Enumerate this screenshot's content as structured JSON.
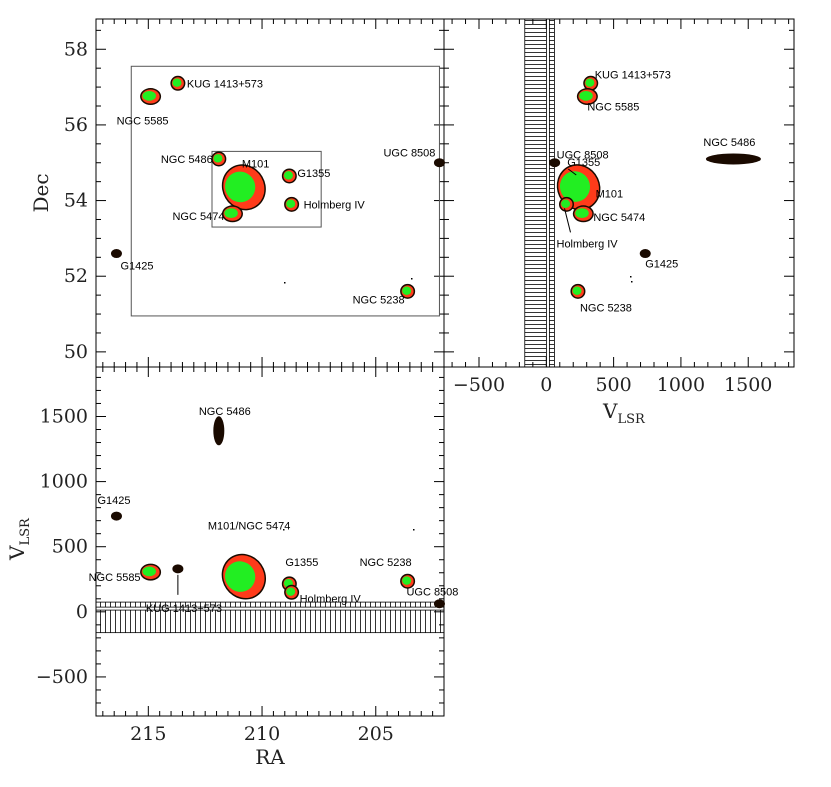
{
  "chart_data": [
    {
      "type": "scatter",
      "panel": "top-left",
      "title": "",
      "xlabel": "",
      "ylabel": "Dec",
      "xlim": [
        217.3,
        202.0
      ],
      "ylim": [
        49.6,
        58.8
      ],
      "xticks": [],
      "yticks": [
        50,
        52,
        54,
        56,
        58
      ],
      "boxes": [
        {
          "name": "outer field",
          "ra": [
            215.75,
            202.2
          ],
          "dec": [
            50.95,
            57.55
          ]
        },
        {
          "name": "inner field",
          "ra": [
            212.2,
            207.4
          ],
          "dec": [
            53.3,
            55.3
          ]
        }
      ],
      "sources": [
        {
          "name": "KUG 1413+573",
          "ra": 213.7,
          "dec": 57.1,
          "size": "small"
        },
        {
          "name": "NGC 5585",
          "ra": 214.9,
          "dec": 56.75,
          "size": "medium"
        },
        {
          "name": "NGC 5486",
          "ra": 211.9,
          "dec": 55.1,
          "size": "small"
        },
        {
          "name": "M101",
          "ra": 210.8,
          "dec": 54.35,
          "size": "large"
        },
        {
          "name": "G1355",
          "ra": 208.8,
          "dec": 54.65,
          "size": "small"
        },
        {
          "name": "Holmberg IV",
          "ra": 208.7,
          "dec": 53.9,
          "size": "small"
        },
        {
          "name": "NGC 5474",
          "ra": 211.3,
          "dec": 53.65,
          "size": "medium"
        },
        {
          "name": "UGC 8508",
          "ra": 202.2,
          "dec": 55.0,
          "size": "tiny"
        },
        {
          "name": "G1425",
          "ra": 216.4,
          "dec": 52.6,
          "size": "tiny"
        },
        {
          "name": "NGC 5238",
          "ra": 203.6,
          "dec": 51.6,
          "size": "small"
        }
      ]
    },
    {
      "type": "scatter",
      "panel": "top-right",
      "title": "",
      "xlabel": "V",
      "xlabel_sub": "LSR",
      "ylabel": "",
      "xlim": [
        -760,
        1840
      ],
      "ylim": [
        49.6,
        58.8
      ],
      "xticks": [
        -500,
        0,
        500,
        1000,
        1500
      ],
      "yticks": [],
      "masked_range": [
        -160,
        90
      ],
      "sources": [
        {
          "name": "KUG 1413+573",
          "v": 330,
          "dec": 57.1,
          "size": "small"
        },
        {
          "name": "NGC 5585",
          "v": 305,
          "dec": 56.75,
          "size": "medium"
        },
        {
          "name": "UGC 8508",
          "v": 62,
          "dec": 55.0,
          "size": "tiny"
        },
        {
          "name": "G1355",
          "v": 215,
          "dec": 54.65,
          "size": "small"
        },
        {
          "name": "NGC 5486",
          "v": 1390,
          "dec": 55.1,
          "size": "elongated"
        },
        {
          "name": "M101",
          "v": 240,
          "dec": 54.35,
          "size": "large"
        },
        {
          "name": "NGC 5474",
          "v": 275,
          "dec": 53.65,
          "size": "medium"
        },
        {
          "name": "Holmberg IV",
          "v": 150,
          "dec": 53.9,
          "size": "small"
        },
        {
          "name": "G1425",
          "v": 735,
          "dec": 52.6,
          "size": "tiny"
        },
        {
          "name": "NGC 5238",
          "v": 235,
          "dec": 51.6,
          "size": "small"
        }
      ]
    },
    {
      "type": "scatter",
      "panel": "bottom-left",
      "title": "",
      "xlabel": "RA",
      "ylabel": "V",
      "ylabel_sub": "LSR",
      "xlim": [
        217.3,
        202.0
      ],
      "ylim": [
        -800,
        1880
      ],
      "xticks": [
        215,
        210,
        205
      ],
      "yticks": [
        -500,
        0,
        500,
        1000,
        1500
      ],
      "masked_range": [
        -160,
        90
      ],
      "sources": [
        {
          "name": "NGC 5486",
          "ra": 211.9,
          "v": 1390,
          "size": "elongated-v"
        },
        {
          "name": "G1425",
          "ra": 216.4,
          "v": 735,
          "size": "tiny"
        },
        {
          "name": "M101/NGC 5474",
          "ra": 210.8,
          "v": 270,
          "size": "large"
        },
        {
          "name": "NGC 5585",
          "ra": 214.9,
          "v": 305,
          "size": "medium"
        },
        {
          "name": "KUG 1413+573",
          "ra": 213.7,
          "v": 330,
          "size": "tiny"
        },
        {
          "name": "G1355",
          "ra": 208.8,
          "v": 215,
          "size": "small"
        },
        {
          "name": "Holmberg IV",
          "ra": 208.7,
          "v": 150,
          "size": "small"
        },
        {
          "name": "NGC 5238",
          "ra": 203.6,
          "v": 235,
          "size": "small"
        },
        {
          "name": "UGC 8508",
          "ra": 202.2,
          "v": 62,
          "size": "tiny"
        }
      ]
    }
  ],
  "colors": {
    "outer": "#1a0a00",
    "mid": "#ff3b1a",
    "core": "#22ee22",
    "frame": "#000000"
  }
}
